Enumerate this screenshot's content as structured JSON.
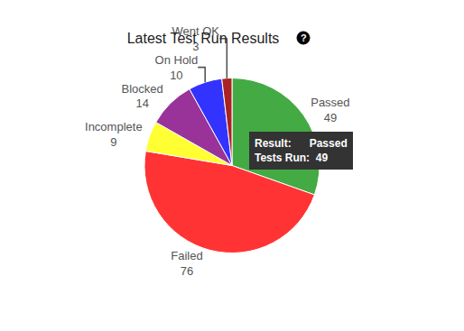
{
  "chart_data": {
    "type": "pie",
    "title": "Latest Test Run Results",
    "title_icon": "?",
    "categories": [
      "Passed",
      "Failed",
      "Incomplete",
      "Blocked",
      "On Hold",
      "Went OK"
    ],
    "values": [
      49,
      76,
      9,
      14,
      10,
      3
    ],
    "colors": [
      "#44aa44",
      "#ff3333",
      "#ffff33",
      "#993399",
      "#3333ff",
      "#aa2222"
    ],
    "data_labels": true,
    "tooltip": {
      "result_label": "Result:",
      "result": "Passed",
      "count_label": "Tests Run:",
      "count": 49
    }
  }
}
